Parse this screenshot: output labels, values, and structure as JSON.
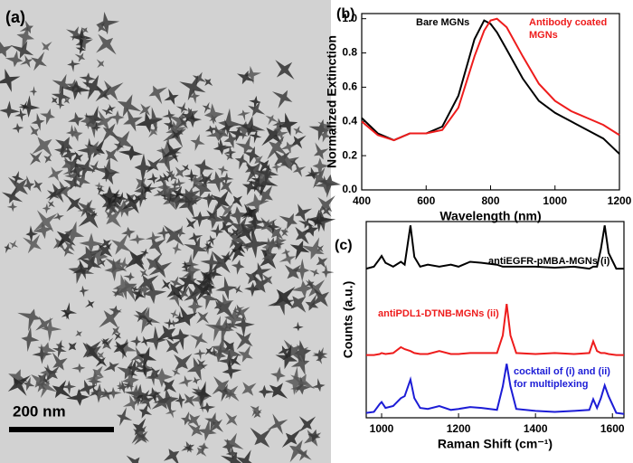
{
  "panels": [
    "(a)",
    "(b)",
    "(c)"
  ],
  "scale_bar": "200 nm",
  "chart_data": [
    {
      "type": "line",
      "xlabel": "Wavelength (nm)",
      "ylabel": "Normalized Extinction",
      "x": [
        400,
        450,
        500,
        550,
        600,
        650,
        700,
        750,
        780,
        800,
        820,
        850,
        900,
        950,
        1000,
        1050,
        1100,
        1150,
        1200
      ],
      "xlim": [
        400,
        1200
      ],
      "xticks": [
        400,
        600,
        800,
        1000,
        1200
      ],
      "ylim": [
        0,
        1.03
      ],
      "yticks": [
        {
          "value": 0,
          "label": "0.0"
        },
        {
          "value": 0.2,
          "label": "0.2"
        },
        {
          "value": 0.4,
          "label": "0.4"
        },
        {
          "value": 0.6,
          "label": "0.6"
        },
        {
          "value": 0.8,
          "label": "0.8"
        },
        {
          "value": 1.0,
          "label": "1.0"
        }
      ],
      "series": [
        {
          "name": "Bare MGNs",
          "color": "#000000",
          "values": [
            0.42,
            0.33,
            0.29,
            0.33,
            0.33,
            0.37,
            0.55,
            0.88,
            0.99,
            0.97,
            0.92,
            0.82,
            0.65,
            0.52,
            0.45,
            0.4,
            0.35,
            0.3,
            0.21
          ]
        },
        {
          "name": "Antibody coated MGNs",
          "color": "#ee1c1c",
          "values": [
            0.4,
            0.32,
            0.29,
            0.33,
            0.33,
            0.35,
            0.48,
            0.78,
            0.93,
            0.99,
            1.0,
            0.95,
            0.78,
            0.62,
            0.52,
            0.46,
            0.42,
            0.38,
            0.32
          ]
        }
      ]
    },
    {
      "type": "line",
      "xlabel": "Raman Shift (cm⁻¹)",
      "ylabel": "Counts (a.u.)",
      "x": [
        960,
        980,
        995,
        1000,
        1010,
        1030,
        1050,
        1060,
        1075,
        1085,
        1100,
        1120,
        1150,
        1180,
        1200,
        1230,
        1260,
        1300,
        1315,
        1325,
        1335,
        1350,
        1400,
        1450,
        1500,
        1540,
        1550,
        1560,
        1570,
        1580,
        1590,
        1610,
        1630
      ],
      "xlim": [
        960,
        1630
      ],
      "xticks": [
        1000,
        1200,
        1400,
        1600
      ],
      "ylim": [
        0,
        10
      ],
      "series": [
        {
          "name": "antiEGFR-pMBA-MGNs (i)",
          "color": "#000000",
          "values": [
            7.6,
            7.7,
            8.1,
            8.25,
            7.9,
            7.7,
            7.95,
            7.8,
            9.8,
            8.2,
            7.7,
            7.8,
            7.7,
            7.8,
            7.7,
            7.95,
            7.9,
            7.8,
            7.7,
            7.7,
            7.7,
            7.7,
            7.7,
            7.65,
            7.7,
            7.6,
            7.7,
            7.7,
            8.6,
            9.8,
            8.4,
            7.6,
            7.6
          ]
        },
        {
          "name": "antiPDL1-DTNB-MGNs (ii)",
          "color": "#ee1c1c",
          "values": [
            3.2,
            3.2,
            3.25,
            3.3,
            3.25,
            3.3,
            3.6,
            3.5,
            3.4,
            3.3,
            3.25,
            3.25,
            3.4,
            3.25,
            3.25,
            3.3,
            3.3,
            3.3,
            4.2,
            5.8,
            4.2,
            3.3,
            3.25,
            3.3,
            3.25,
            3.3,
            3.9,
            3.4,
            3.3,
            3.3,
            3.25,
            3.2,
            3.2
          ]
        },
        {
          "name": "cocktail of (i) and (ii) for multiplexing",
          "color": "#1c1cd6",
          "values": [
            0.25,
            0.3,
            0.7,
            0.8,
            0.5,
            0.6,
            1.0,
            1.1,
            1.95,
            1.0,
            0.5,
            0.45,
            0.6,
            0.4,
            0.45,
            0.55,
            0.5,
            0.4,
            1.6,
            2.75,
            1.6,
            0.45,
            0.35,
            0.3,
            0.35,
            0.4,
            0.95,
            0.5,
            1.0,
            1.65,
            1.1,
            0.25,
            0.2
          ]
        }
      ]
    }
  ]
}
